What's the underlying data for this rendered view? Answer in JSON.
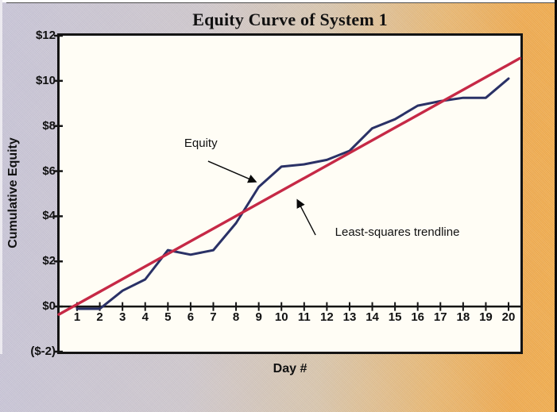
{
  "chart_data": {
    "type": "line",
    "title": "Equity Curve of System 1",
    "xlabel": "Day #",
    "ylabel": "Cumulative Equity",
    "xlim": [
      0.2,
      20.5
    ],
    "ylim": [
      -2,
      12
    ],
    "grid": false,
    "legend_position": "none - series identified by arrow annotations",
    "x": [
      1,
      2,
      3,
      4,
      5,
      6,
      7,
      8,
      9,
      10,
      11,
      12,
      13,
      14,
      15,
      16,
      17,
      18,
      19,
      20
    ],
    "x_tick_labels": [
      "1",
      "2",
      "3",
      "4",
      "5",
      "6",
      "7",
      "8",
      "9",
      "10",
      "11",
      "12",
      "13",
      "14",
      "15",
      "16",
      "17",
      "18",
      "19",
      "20"
    ],
    "y_tick_values": [
      12,
      10,
      8,
      6,
      4,
      2,
      0,
      -2
    ],
    "y_tick_labels": [
      "$12",
      "$10",
      "$8",
      "$6",
      "$4",
      "$2",
      "$0",
      "($-2)"
    ],
    "series": [
      {
        "name": "Equity",
        "color": "#2a3166",
        "values": [
          -0.1,
          -0.1,
          0.7,
          1.2,
          2.5,
          2.3,
          2.5,
          3.7,
          5.3,
          6.2,
          6.3,
          6.5,
          6.9,
          7.9,
          8.3,
          8.9,
          9.1,
          9.25,
          9.25,
          10.1
        ]
      },
      {
        "name": "Least-squares trendline",
        "color": "#c62946",
        "x": [
          0.2,
          20.5
        ],
        "values": [
          -0.35,
          11.0
        ]
      }
    ],
    "annotations": [
      {
        "text": "Equity",
        "text_day": 5.72,
        "text_value": 7.55,
        "arrow_from_day": 6.77,
        "arrow_from_value": 6.44,
        "arrow_to_day": 8.87,
        "arrow_to_value": 5.53
      },
      {
        "text": "Least-squares trendline",
        "text_day": 12.36,
        "text_value": 3.6,
        "arrow_from_day": 11.5,
        "arrow_from_value": 3.17,
        "arrow_to_day": 10.7,
        "arrow_to_value": 4.72
      }
    ]
  },
  "colors": {
    "background_left": "#c8c5d6",
    "background_right": "#f0aa4c",
    "plot_background": "#fffdf5",
    "axis": "#141414",
    "equity_line": "#2a3166",
    "trendline": "#c62946",
    "annotation_arrow": "#0a0a0a"
  }
}
